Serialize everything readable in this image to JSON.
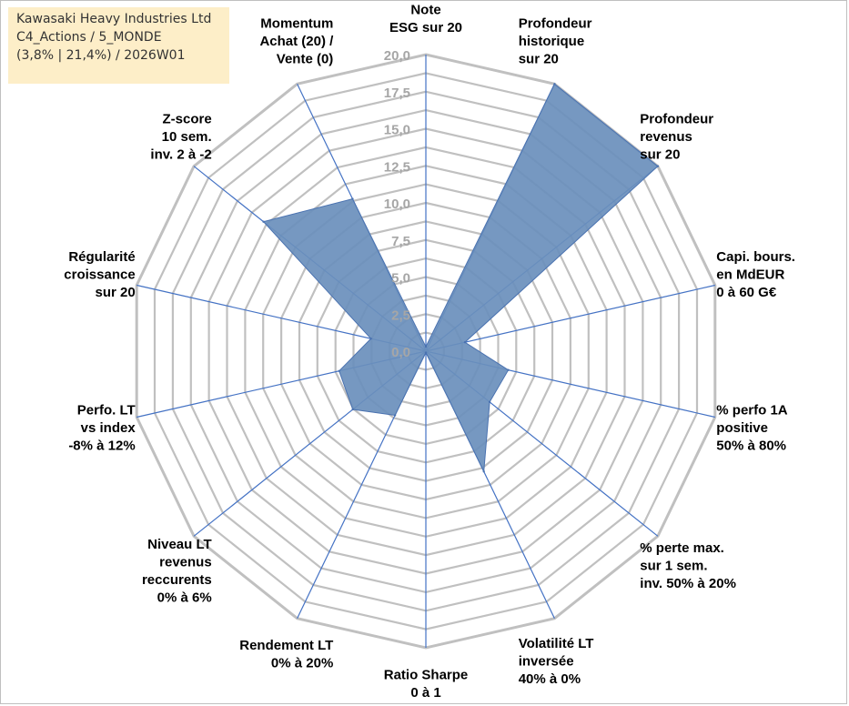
{
  "info": {
    "company": "Kawasaki Heavy Industries Ltd",
    "category": "C4_Actions / 5_MONDE",
    "range_week": "(3,8% | 21,4%) / 2026W01"
  },
  "colors": {
    "grid": "#c0c0c0",
    "spoke": "#4472c4",
    "fill": "#6a8fbc",
    "stroke": "#4a72b0",
    "tick_text": "#a6a6a6",
    "label_text": "#000000",
    "info_bg": "#fdeec8"
  },
  "chart_data": {
    "type": "radar",
    "title": "",
    "rmin": 0,
    "rmax": 20,
    "tick_step": 2.5,
    "grid_levels": 16,
    "tick_labels": [
      "0,0",
      "2,5",
      "5,0",
      "7,5",
      "10,0",
      "12,5",
      "15,0",
      "17,5",
      "20,0"
    ],
    "categories": [
      {
        "lines": [
          "Note",
          "ESG sur 20"
        ]
      },
      {
        "lines": [
          "Profondeur",
          "historique",
          "sur 20"
        ]
      },
      {
        "lines": [
          "Profondeur",
          "revenus",
          "sur 20"
        ]
      },
      {
        "lines": [
          "Capi. bours.",
          "en MdEUR",
          "0 à 60 G€"
        ]
      },
      {
        "lines": [
          "% perfo 1A",
          "positive",
          "50% à 80%"
        ]
      },
      {
        "lines": [
          "% perte max.",
          "sur 1 sem.",
          "inv. 50% à 20%"
        ]
      },
      {
        "lines": [
          "Volatilité LT",
          "inversée",
          "40% à 0%"
        ]
      },
      {
        "lines": [
          "Ratio Sharpe",
          "0 à 1"
        ]
      },
      {
        "lines": [
          "Rendement LT",
          "0% à 20%"
        ]
      },
      {
        "lines": [
          "Niveau LT",
          "revenus",
          "reccurents",
          "0% à 6%"
        ]
      },
      {
        "lines": [
          "Perfo. LT",
          "vs index",
          "-8% à 12%"
        ]
      },
      {
        "lines": [
          "Régularité",
          "croissance",
          "sur 20"
        ]
      },
      {
        "lines": [
          "Z-score",
          "10 sem.",
          "inv. 2 à -2"
        ]
      },
      {
        "lines": [
          "Momentum",
          "Achat (20) /",
          "Vente (0)"
        ]
      }
    ],
    "series": [
      {
        "name": "Kawasaki Heavy Industries Ltd",
        "values": [
          0.3,
          20.0,
          20.0,
          2.7,
          5.7,
          5.5,
          9.0,
          0.1,
          4.8,
          6.3,
          6.0,
          3.8,
          14.0,
          11.4
        ]
      }
    ]
  }
}
